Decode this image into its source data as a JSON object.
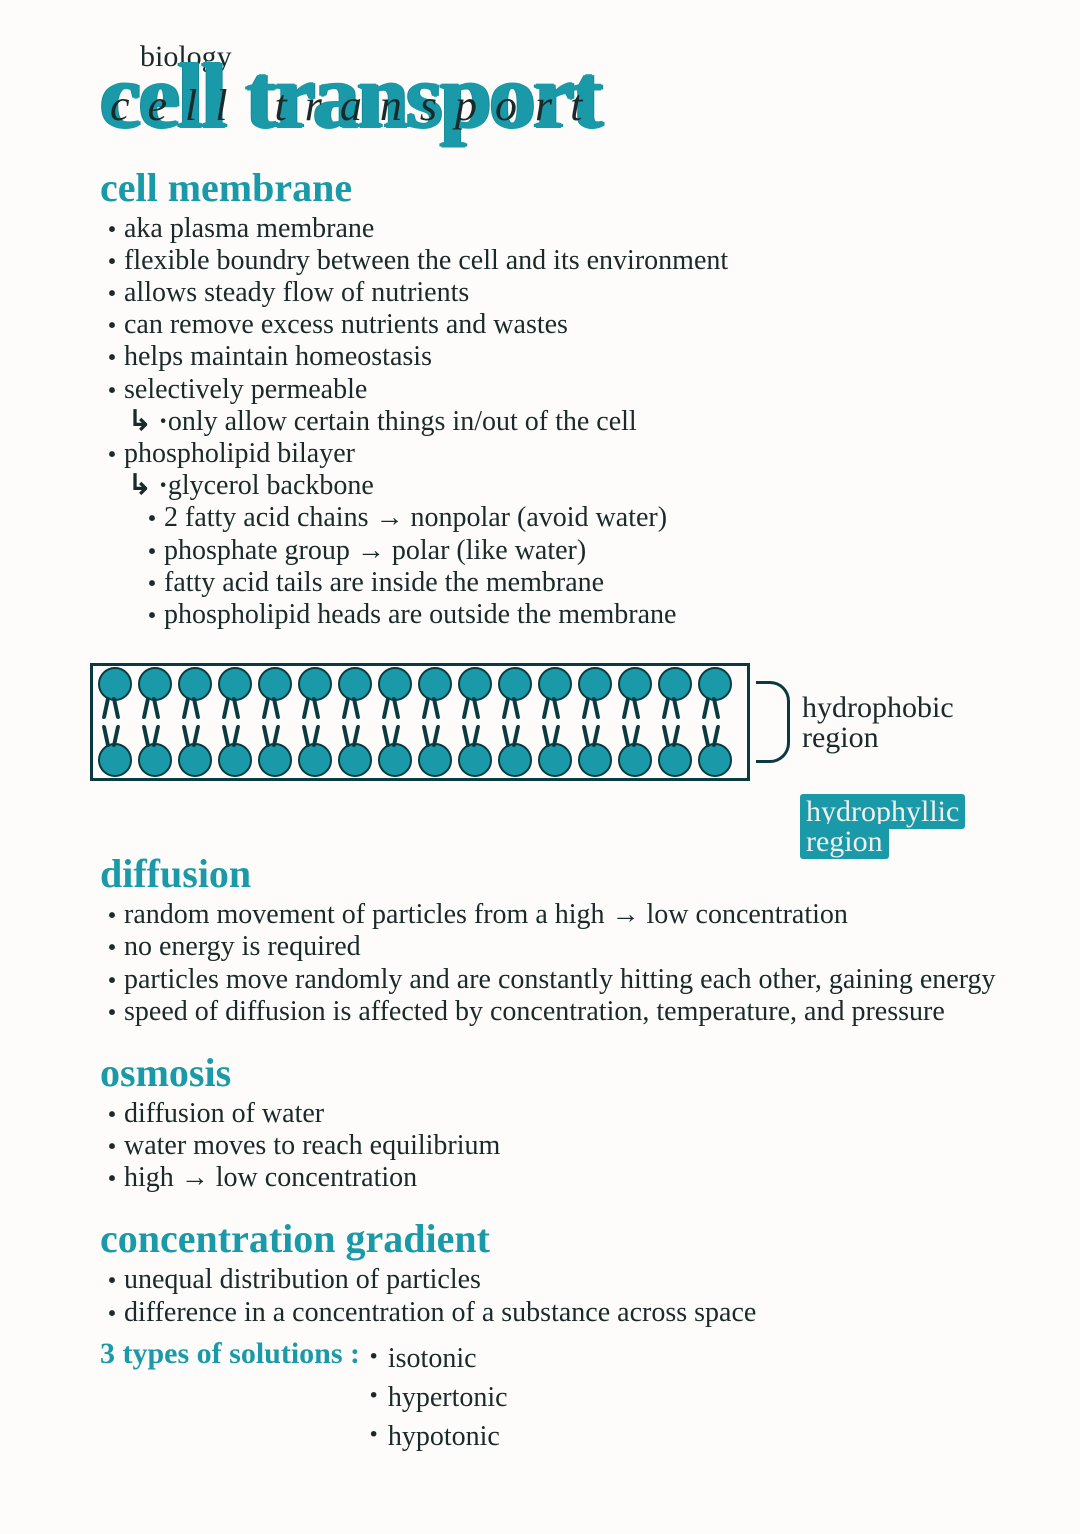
{
  "colors": {
    "accent": "#1a9aa8",
    "ink": "#1a2a2a",
    "paper": "#fdfcfa",
    "membrane_border": "#0a3a40"
  },
  "subject": "biology",
  "title": {
    "block": "cell transport",
    "cursive_overlay": "cell transport"
  },
  "sections": {
    "cell_membrane": {
      "heading": "cell membrane",
      "bullets": [
        "aka plasma membrane",
        "flexible boundry between the cell and its environment",
        "allows steady flow of nutrients",
        "can remove excess nutrients and wastes",
        "helps maintain homeostasis",
        "selectively permeable"
      ],
      "selectively_sub": "only allow certain things in/out of the cell",
      "phospholipid_label": "phospholipid bilayer",
      "phospholipid_sub_lead": "glycerol backbone",
      "phospholipid_sub": [
        "2 fatty acid chains → nonpolar (avoid water)",
        "phosphate group → polar (like water)",
        "fatty acid tails are inside the membrane",
        "phospholipid heads are outside the membrane"
      ]
    },
    "diagram": {
      "lipids_per_row": 16,
      "head_color": "#1a9aa8",
      "outline_color": "#0a3a40",
      "label_hydrophobic_l1": "hydrophobic",
      "label_hydrophobic_l2": "region",
      "label_hydrophyllic_l1": "hydrophyllic",
      "label_hydrophyllic_l2": "region"
    },
    "diffusion": {
      "heading": "diffusion",
      "bullets": [
        "random movement of particles from a high → low concentration",
        "no energy is required",
        "particles move randomly and are constantly hitting each other, gaining energy",
        "speed of diffusion is affected by concentration, temperature, and pressure"
      ]
    },
    "osmosis": {
      "heading": "osmosis",
      "bullets": [
        "diffusion of water",
        "water moves to reach equilibrium",
        "high → low concentration"
      ]
    },
    "gradient": {
      "heading": "concentration gradient",
      "bullets": [
        "unequal distribution of particles",
        "difference in a concentration of a substance across space"
      ]
    },
    "solutions": {
      "label": "3 types of solutions :",
      "items": [
        "isotonic",
        "hypertonic",
        "hypotonic"
      ]
    }
  }
}
